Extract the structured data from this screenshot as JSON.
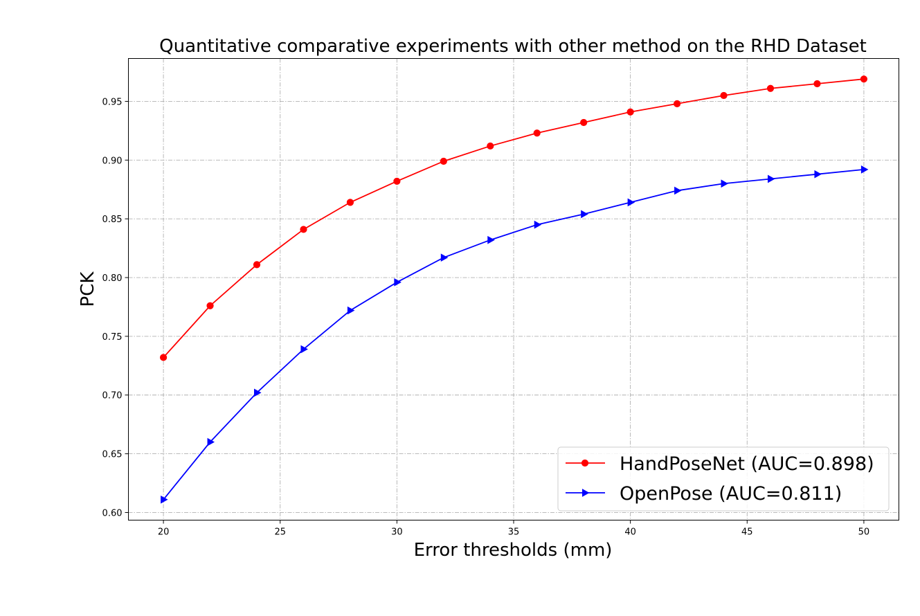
{
  "chart_data": {
    "type": "line",
    "title": "Quantitative comparative experiments with other method on the RHD Dataset",
    "xlabel": "Error thresholds (mm)",
    "ylabel": "PCK",
    "x": [
      20,
      22,
      24,
      26,
      28,
      30,
      32,
      34,
      36,
      38,
      40,
      42,
      44,
      46,
      48,
      50
    ],
    "xlim": [
      18.5,
      51.5
    ],
    "ylim": [
      0.5935,
      0.9865
    ],
    "xticks": [
      20,
      25,
      30,
      35,
      40,
      45,
      50
    ],
    "yticks": [
      0.6,
      0.65,
      0.7,
      0.75,
      0.8,
      0.85,
      0.9,
      0.95
    ],
    "xtick_labels": [
      "20",
      "25",
      "30",
      "35",
      "40",
      "45",
      "50"
    ],
    "ytick_labels": [
      "0.60",
      "0.65",
      "0.70",
      "0.75",
      "0.80",
      "0.85",
      "0.90",
      "0.95"
    ],
    "grid": true,
    "legend_position": "lower-right",
    "series": [
      {
        "name": "HandPoseNet (AUC=0.898)",
        "color": "#ff0000",
        "marker": "circle",
        "values": [
          0.732,
          0.776,
          0.811,
          0.841,
          0.864,
          0.882,
          0.899,
          0.912,
          0.923,
          0.932,
          0.941,
          0.948,
          0.955,
          0.961,
          0.965,
          0.969
        ]
      },
      {
        "name": "OpenPose (AUC=0.811)",
        "color": "#0000ff",
        "marker": "triangle-right",
        "values": [
          0.611,
          0.66,
          0.702,
          0.739,
          0.772,
          0.796,
          0.817,
          0.832,
          0.845,
          0.854,
          0.864,
          0.874,
          0.88,
          0.884,
          0.888,
          0.892
        ]
      }
    ]
  }
}
